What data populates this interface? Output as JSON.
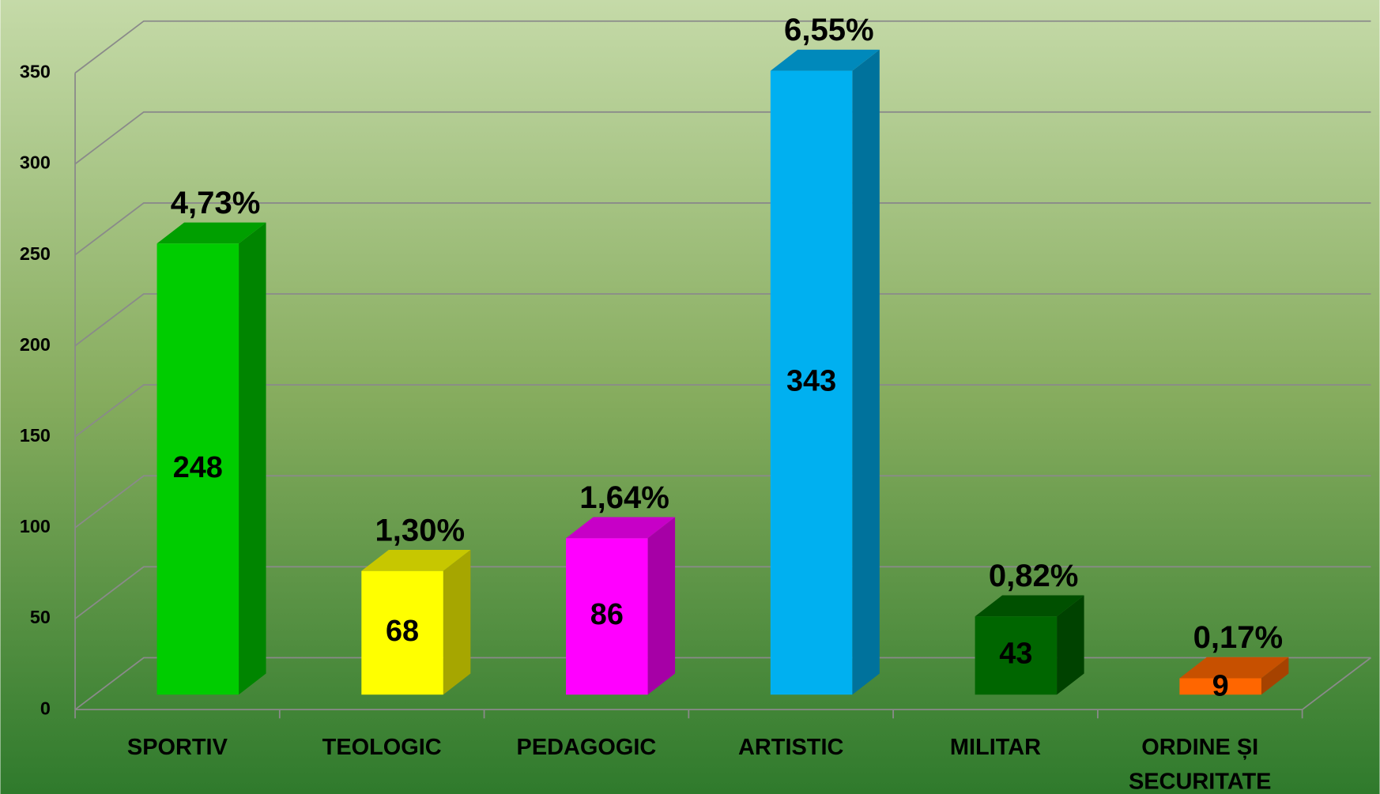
{
  "chart_data": {
    "type": "bar3d",
    "categories": [
      "SPORTIV",
      "TEOLOGIC",
      "PEDAGOGIC",
      "ARTISTIC",
      "MILITAR",
      "ORDINE ȘI SECURITATE"
    ],
    "values": [
      248,
      68,
      86,
      343,
      43,
      9
    ],
    "percent_labels": [
      "4,73%",
      "1,30%",
      "1,64%",
      "6,55%",
      "0,82%",
      "0,17%"
    ],
    "colors": [
      "#00cc00",
      "#ffff00",
      "#ff00ff",
      "#00b0f0",
      "#006600",
      "#ff6600"
    ],
    "ylim": [
      0,
      350
    ],
    "yticks": [
      0,
      50,
      100,
      150,
      200,
      250,
      300,
      350
    ],
    "grid": true
  }
}
